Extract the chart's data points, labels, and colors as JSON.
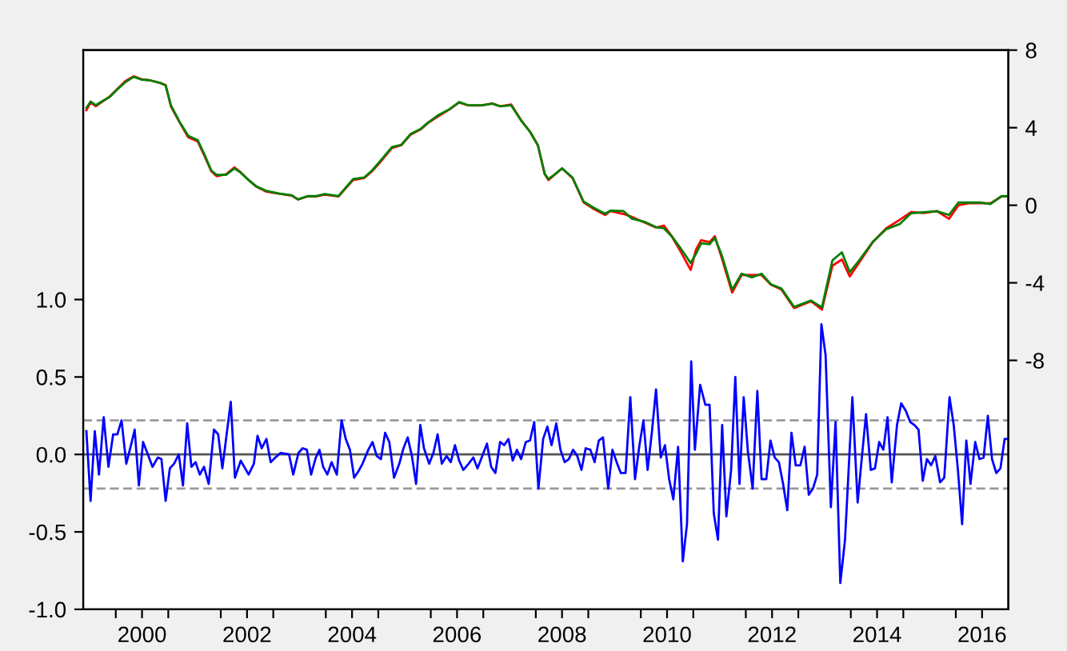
{
  "chart_data": {
    "type": "line",
    "xlim": [
      1999.38,
      2017.0
    ],
    "ylim": [
      -1.0,
      2.61
    ],
    "y2lim": [
      -20.84,
      8.0
    ],
    "xticks": [
      {
        "value": 2000,
        "label": null
      },
      {
        "value": 2000.5,
        "label": "2000"
      },
      {
        "value": 2001,
        "label": null
      },
      {
        "value": 2002,
        "label": null
      },
      {
        "value": 2002.5,
        "label": "2002"
      },
      {
        "value": 2003,
        "label": null
      },
      {
        "value": 2004,
        "label": null
      },
      {
        "value": 2004.5,
        "label": "2004"
      },
      {
        "value": 2005,
        "label": null
      },
      {
        "value": 2006,
        "label": null
      },
      {
        "value": 2006.5,
        "label": "2006"
      },
      {
        "value": 2007,
        "label": null
      },
      {
        "value": 2008,
        "label": null
      },
      {
        "value": 2008.5,
        "label": "2008"
      },
      {
        "value": 2009,
        "label": null
      },
      {
        "value": 2010,
        "label": null
      },
      {
        "value": 2010.5,
        "label": "2010"
      },
      {
        "value": 2011,
        "label": null
      },
      {
        "value": 2012,
        "label": null
      },
      {
        "value": 2012.5,
        "label": "2012"
      },
      {
        "value": 2013,
        "label": null
      },
      {
        "value": 2014,
        "label": null
      },
      {
        "value": 2014.5,
        "label": "2014"
      },
      {
        "value": 2015,
        "label": null
      },
      {
        "value": 2016,
        "label": null
      },
      {
        "value": 2016.5,
        "label": "2016"
      }
    ],
    "yticks": [
      {
        "value": -1.0,
        "label": "-1.0"
      },
      {
        "value": -0.5,
        "label": "-0.5"
      },
      {
        "value": 0.0,
        "label": "0.0"
      },
      {
        "value": 0.5,
        "label": "0.5"
      },
      {
        "value": 1.0,
        "label": "1.0"
      }
    ],
    "y2ticks": [
      -8,
      -4,
      0,
      4,
      8
    ],
    "grid": false,
    "legend": false,
    "marker": "none",
    "line_style": "solid",
    "ref_lines": [
      {
        "axis": "y",
        "value": 0.0,
        "color": "#555555",
        "line_style": "solid"
      },
      {
        "axis": "y",
        "value": 0.22,
        "color": "#999999",
        "line_style": "dashed"
      },
      {
        "axis": "y",
        "value": -0.22,
        "color": "#999999",
        "line_style": "dashed"
      }
    ],
    "series": [
      {
        "axis": "y",
        "color": "#0000ff",
        "x": [
          1999.44,
          1999.52,
          1999.6,
          1999.68,
          1999.77,
          1999.86,
          1999.95,
          2000.03,
          2000.11,
          2000.2,
          2000.29,
          2000.36,
          2000.44,
          2000.52,
          2000.6,
          2000.7,
          2000.8,
          2000.87,
          2000.95,
          2001.03,
          2001.11,
          2001.2,
          2001.28,
          2001.36,
          2001.44,
          2001.52,
          2001.6,
          2001.68,
          2001.77,
          2001.87,
          2001.95,
          2002.03,
          2002.19,
          2002.27,
          2002.38,
          2002.53,
          2002.63,
          2002.7,
          2002.78,
          2002.87,
          2002.95,
          2003.04,
          2003.14,
          2003.3,
          2003.38,
          2003.48,
          2003.56,
          2003.64,
          2003.72,
          2003.81,
          2003.88,
          2003.95,
          2004.03,
          2004.11,
          2004.21,
          2004.3,
          2004.38,
          2004.46,
          2004.54,
          2004.62,
          2004.7,
          2004.81,
          2004.89,
          2004.97,
          2005.05,
          2005.13,
          2005.21,
          2005.3,
          2005.4,
          2005.48,
          2005.56,
          2005.64,
          2005.72,
          2005.8,
          2005.87,
          2005.97,
          2006.05,
          2006.13,
          2006.21,
          2006.3,
          2006.38,
          2006.46,
          2006.54,
          2006.62,
          2006.72,
          2006.81,
          2006.89,
          2006.97,
          2007.07,
          2007.15,
          2007.23,
          2007.32,
          2007.4,
          2007.48,
          2007.56,
          2007.64,
          2007.72,
          2007.81,
          2007.89,
          2007.97,
          2008.05,
          2008.14,
          2008.22,
          2008.3,
          2008.39,
          2008.47,
          2008.55,
          2008.63,
          2008.71,
          2008.79,
          2008.87,
          2008.95,
          2009.04,
          2009.12,
          2009.2,
          2009.28,
          2009.38,
          2009.46,
          2009.54,
          2009.62,
          2009.71,
          2009.8,
          2009.89,
          2009.97,
          2010.05,
          2010.13,
          2010.21,
          2010.29,
          2010.38,
          2010.46,
          2010.54,
          2010.62,
          2010.71,
          2010.8,
          2010.88,
          2010.96,
          2011.03,
          2011.13,
          2011.23,
          2011.31,
          2011.39,
          2011.47,
          2011.55,
          2011.63,
          2011.72,
          2011.8,
          2011.88,
          2011.96,
          2012.04,
          2012.13,
          2012.22,
          2012.3,
          2012.39,
          2012.47,
          2012.55,
          2012.63,
          2012.71,
          2012.79,
          2012.87,
          2012.95,
          2013.04,
          2013.12,
          2013.2,
          2013.28,
          2013.36,
          2013.44,
          2013.52,
          2013.62,
          2013.71,
          2013.8,
          2013.89,
          2014.03,
          2014.13,
          2014.21,
          2014.29,
          2014.38,
          2014.46,
          2014.54,
          2014.62,
          2014.7,
          2014.78,
          2014.88,
          2014.96,
          2015.05,
          2015.13,
          2015.21,
          2015.29,
          2015.37,
          2015.45,
          2015.53,
          2015.61,
          2015.7,
          2015.78,
          2015.88,
          2015.96,
          2016.04,
          2016.12,
          2016.2,
          2016.28,
          2016.37,
          2016.45,
          2016.53,
          2016.61,
          2016.69,
          2016.77,
          2016.85,
          2016.93,
          2016.99
        ],
        "values": [
          0.15,
          -0.3,
          0.15,
          -0.13,
          0.24,
          -0.08,
          0.13,
          0.13,
          0.22,
          -0.06,
          0.06,
          0.16,
          -0.2,
          0.08,
          0.01,
          -0.08,
          -0.02,
          -0.03,
          -0.3,
          -0.09,
          -0.06,
          0.0,
          -0.2,
          0.2,
          -0.08,
          -0.05,
          -0.13,
          -0.08,
          -0.19,
          0.16,
          0.13,
          -0.09,
          0.34,
          -0.15,
          -0.04,
          -0.13,
          -0.06,
          0.12,
          0.04,
          0.1,
          -0.05,
          -0.02,
          0.01,
          0.0,
          -0.13,
          0.01,
          0.04,
          0.03,
          -0.13,
          -0.02,
          0.03,
          -0.08,
          -0.13,
          -0.05,
          -0.13,
          0.22,
          0.1,
          0.03,
          -0.15,
          -0.11,
          -0.06,
          0.03,
          0.08,
          -0.01,
          -0.03,
          0.14,
          0.08,
          -0.15,
          -0.06,
          0.04,
          0.11,
          -0.01,
          -0.19,
          0.19,
          0.04,
          -0.06,
          0.01,
          0.13,
          -0.06,
          -0.01,
          -0.05,
          0.06,
          -0.04,
          -0.1,
          -0.06,
          -0.02,
          -0.09,
          -0.02,
          0.07,
          -0.08,
          -0.12,
          0.08,
          0.06,
          0.1,
          -0.04,
          0.03,
          -0.03,
          0.08,
          0.09,
          0.21,
          -0.22,
          0.1,
          0.18,
          0.06,
          0.2,
          0.03,
          -0.05,
          -0.03,
          0.03,
          -0.01,
          -0.1,
          0.04,
          0.03,
          -0.05,
          0.09,
          0.11,
          -0.22,
          0.03,
          -0.05,
          -0.12,
          -0.12,
          0.37,
          -0.16,
          0.05,
          0.22,
          -0.1,
          0.14,
          0.42,
          -0.02,
          0.06,
          -0.16,
          -0.29,
          0.05,
          -0.69,
          -0.45,
          0.6,
          0.03,
          0.45,
          0.32,
          0.32,
          -0.38,
          -0.55,
          0.19,
          -0.4,
          -0.1,
          0.5,
          -0.19,
          0.37,
          0.02,
          -0.22,
          0.41,
          -0.16,
          -0.16,
          0.09,
          -0.02,
          -0.05,
          -0.19,
          -0.36,
          0.14,
          -0.07,
          -0.07,
          0.05,
          -0.26,
          -0.22,
          -0.13,
          0.84,
          0.64,
          -0.34,
          0.21,
          -0.83,
          -0.55,
          0.37,
          -0.31,
          -0.02,
          0.26,
          -0.1,
          -0.09,
          0.08,
          0.03,
          0.24,
          -0.18,
          0.19,
          0.33,
          0.28,
          0.21,
          0.19,
          0.16,
          -0.17,
          -0.03,
          -0.07,
          -0.01,
          -0.18,
          -0.15,
          0.37,
          0.19,
          -0.1,
          -0.45,
          0.09,
          -0.19,
          0.08,
          -0.03,
          -0.02,
          0.25,
          -0.03,
          -0.12,
          -0.09,
          0.1,
          0.1
        ]
      },
      {
        "axis": "y2",
        "color": "#ff0000",
        "x": [
          1999.44,
          1999.52,
          1999.62,
          1999.75,
          1999.88,
          2000.03,
          2000.18,
          2000.34,
          2000.49,
          2000.64,
          2000.85,
          2000.95,
          2001.05,
          2001.21,
          2001.38,
          2001.56,
          2001.68,
          2001.82,
          2001.92,
          2002.1,
          2002.26,
          2002.38,
          2002.53,
          2002.68,
          2002.87,
          2003.1,
          2003.35,
          2003.47,
          2003.65,
          2003.81,
          2003.98,
          2004.24,
          2004.37,
          2004.52,
          2004.73,
          2004.88,
          2005.03,
          2005.26,
          2005.44,
          2005.62,
          2005.8,
          2005.95,
          2006.15,
          2006.36,
          2006.54,
          2006.71,
          2006.97,
          2007.17,
          2007.33,
          2007.53,
          2007.73,
          2007.89,
          2008.04,
          2008.17,
          2008.24,
          2008.35,
          2008.5,
          2008.7,
          2008.91,
          2009.11,
          2009.32,
          2009.42,
          2009.67,
          2009.83,
          2010.08,
          2010.29,
          2010.44,
          2010.59,
          2010.74,
          2010.95,
          2011.05,
          2011.15,
          2011.31,
          2011.41,
          2011.54,
          2011.74,
          2011.92,
          2012.12,
          2012.3,
          2012.48,
          2012.68,
          2012.92,
          2013.24,
          2013.45,
          2013.65,
          2013.83,
          2013.98,
          2014.16,
          2014.42,
          2014.67,
          2014.93,
          2015.15,
          2015.39,
          2015.64,
          2015.87,
          2016.05,
          2016.25,
          2016.46,
          2016.66,
          2016.87,
          2016.99
        ],
        "values": [
          4.9,
          5.3,
          5.1,
          5.35,
          5.6,
          6.0,
          6.4,
          6.65,
          6.5,
          6.45,
          6.3,
          6.2,
          5.1,
          4.3,
          3.5,
          3.3,
          2.6,
          1.75,
          1.5,
          1.6,
          1.95,
          1.7,
          1.3,
          0.95,
          0.7,
          0.6,
          0.5,
          0.3,
          0.45,
          0.45,
          0.55,
          0.45,
          0.85,
          1.3,
          1.4,
          1.75,
          2.2,
          2.95,
          3.1,
          3.65,
          3.9,
          4.25,
          4.6,
          4.95,
          5.3,
          5.15,
          5.15,
          5.25,
          5.1,
          5.2,
          4.35,
          3.8,
          3.1,
          1.6,
          1.3,
          1.55,
          1.9,
          1.4,
          0.15,
          -0.2,
          -0.5,
          -0.3,
          -0.45,
          -0.6,
          -0.9,
          -1.15,
          -1.05,
          -1.6,
          -2.3,
          -3.34,
          -2.3,
          -1.8,
          -1.9,
          -1.6,
          -2.7,
          -4.5,
          -3.6,
          -3.6,
          -3.6,
          -4.1,
          -4.35,
          -5.3,
          -4.95,
          -5.38,
          -3.12,
          -2.8,
          -3.67,
          -2.95,
          -1.9,
          -1.2,
          -0.75,
          -0.35,
          -0.4,
          -0.3,
          -0.7,
          0.0,
          0.1,
          0.1,
          0.1,
          0.45,
          0.45
        ]
      },
      {
        "axis": "y2",
        "color": "#008000",
        "x": [
          1999.44,
          1999.52,
          1999.62,
          1999.75,
          1999.88,
          2000.03,
          2000.18,
          2000.34,
          2000.49,
          2000.64,
          2000.85,
          2000.95,
          2001.05,
          2001.21,
          2001.38,
          2001.56,
          2001.68,
          2001.82,
          2001.92,
          2002.1,
          2002.26,
          2002.38,
          2002.53,
          2002.68,
          2002.87,
          2003.1,
          2003.35,
          2003.47,
          2003.65,
          2003.81,
          2003.98,
          2004.24,
          2004.37,
          2004.52,
          2004.73,
          2004.88,
          2005.03,
          2005.26,
          2005.44,
          2005.62,
          2005.8,
          2005.95,
          2006.15,
          2006.36,
          2006.54,
          2006.71,
          2006.97,
          2007.17,
          2007.33,
          2007.53,
          2007.73,
          2007.89,
          2008.04,
          2008.17,
          2008.24,
          2008.35,
          2008.5,
          2008.7,
          2008.91,
          2009.11,
          2009.32,
          2009.42,
          2009.67,
          2009.83,
          2010.08,
          2010.29,
          2010.44,
          2010.59,
          2010.74,
          2010.95,
          2011.05,
          2011.15,
          2011.31,
          2011.41,
          2011.54,
          2011.74,
          2011.92,
          2012.12,
          2012.3,
          2012.48,
          2012.68,
          2012.92,
          2013.24,
          2013.45,
          2013.65,
          2013.83,
          2013.98,
          2014.16,
          2014.42,
          2014.67,
          2014.93,
          2015.15,
          2015.39,
          2015.64,
          2015.87,
          2016.05,
          2016.25,
          2016.46,
          2016.66,
          2016.87,
          2016.99
        ],
        "values": [
          5.02,
          5.35,
          5.16,
          5.38,
          5.57,
          5.98,
          6.34,
          6.62,
          6.48,
          6.45,
          6.31,
          6.18,
          5.16,
          4.33,
          3.58,
          3.36,
          2.67,
          1.79,
          1.57,
          1.57,
          1.9,
          1.68,
          1.3,
          0.97,
          0.74,
          0.61,
          0.52,
          0.3,
          0.47,
          0.47,
          0.58,
          0.47,
          0.88,
          1.35,
          1.43,
          1.79,
          2.26,
          3.0,
          3.12,
          3.69,
          3.92,
          4.27,
          4.66,
          4.96,
          5.32,
          5.16,
          5.16,
          5.24,
          5.1,
          5.16,
          4.33,
          3.78,
          3.09,
          1.62,
          1.35,
          1.57,
          1.9,
          1.43,
          0.19,
          -0.14,
          -0.44,
          -0.28,
          -0.3,
          -0.69,
          -0.86,
          -1.13,
          -1.19,
          -1.6,
          -2.15,
          -2.98,
          -2.51,
          -1.96,
          -2.01,
          -1.68,
          -2.56,
          -4.36,
          -3.53,
          -3.72,
          -3.53,
          -4.08,
          -4.3,
          -5.24,
          -4.91,
          -5.27,
          -2.84,
          -2.43,
          -3.45,
          -2.84,
          -1.88,
          -1.24,
          -0.97,
          -0.41,
          -0.36,
          -0.31,
          -0.5,
          0.14,
          0.14,
          0.14,
          0.06,
          0.47,
          0.47
        ]
      }
    ]
  }
}
